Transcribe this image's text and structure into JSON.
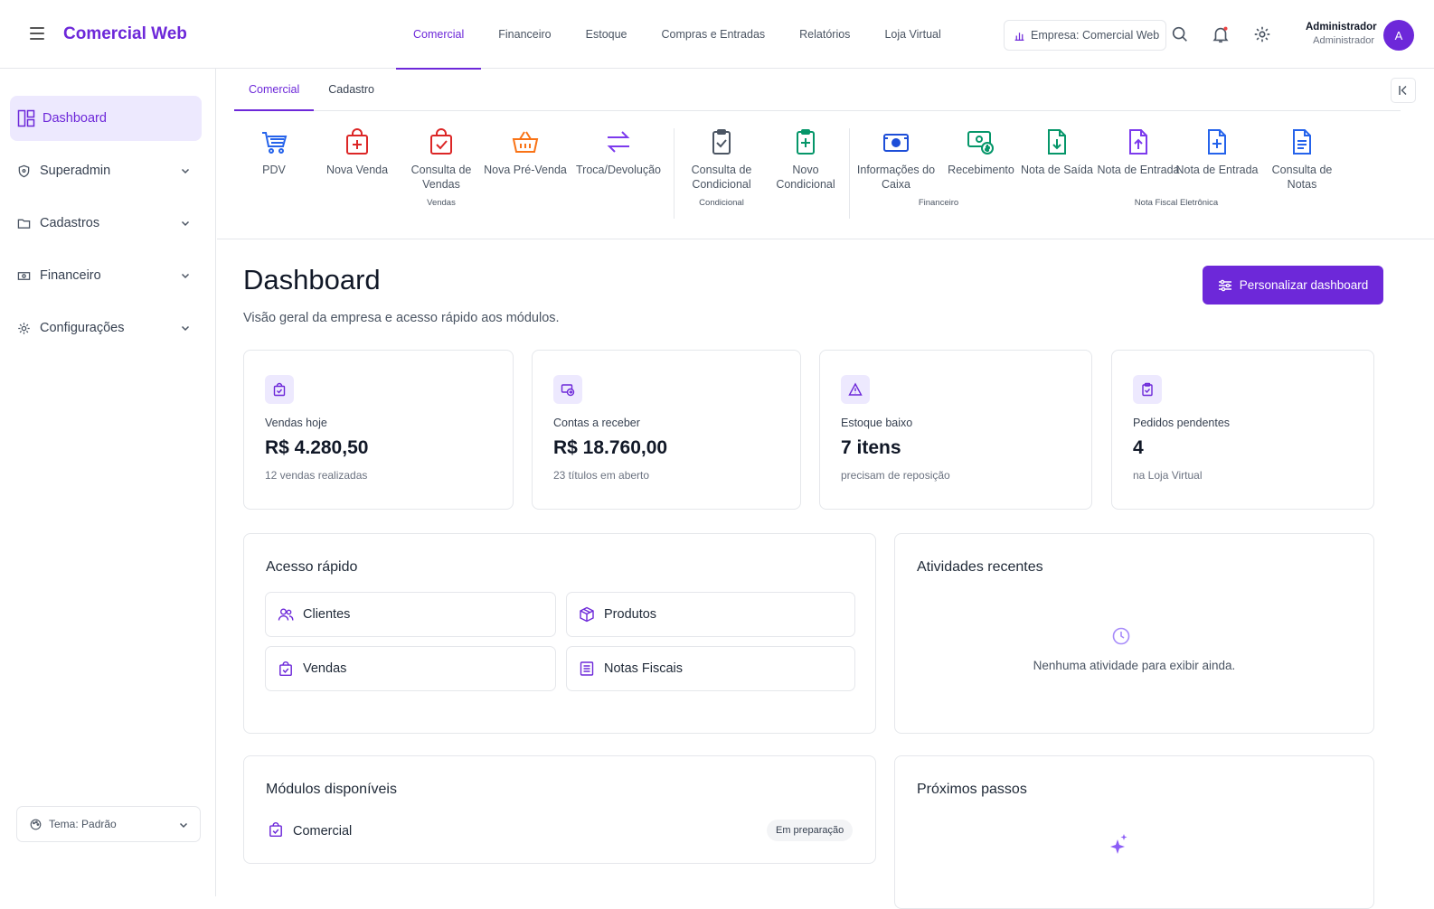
{
  "app": {
    "title": "Comercial Web"
  },
  "topnav": [
    {
      "label": "Comercial"
    },
    {
      "label": "Financeiro"
    },
    {
      "label": "Estoque"
    },
    {
      "label": "Compras e Entradas"
    },
    {
      "label": "Relatórios"
    },
    {
      "label": "Loja Virtual"
    }
  ],
  "company": {
    "label": "Empresa: Comercial Web"
  },
  "user": {
    "name": "Administrador",
    "role": "Administrador",
    "initial": "A"
  },
  "sidebar": {
    "items": [
      {
        "label": "Dashboard",
        "icon": "dashboard-icon"
      },
      {
        "label": "Superadmin",
        "icon": "shield-icon"
      },
      {
        "label": "Cadastros",
        "icon": "folder-icon"
      },
      {
        "label": "Financeiro",
        "icon": "cash-icon"
      },
      {
        "label": "Configurações",
        "icon": "gear-icon"
      }
    ],
    "theme": "Tema: Padrão"
  },
  "subtabs": [
    {
      "label": "Comercial"
    },
    {
      "label": "Cadastro"
    }
  ],
  "modules": [
    {
      "label": "PDV",
      "icon": "cart-icon",
      "color": "#2563eb"
    },
    {
      "label": "Nova Venda",
      "icon": "bag-plus-icon",
      "color": "#dc2626"
    },
    {
      "label": "Consulta de Vendas",
      "icon": "bag-check-icon",
      "color": "#dc2626"
    },
    {
      "label": "Nova Pré-Venda",
      "icon": "basket-icon",
      "color": "#f97316"
    },
    {
      "label": "Troca/Devolução",
      "icon": "exchange-icon",
      "color": "#7c3aed"
    },
    {
      "label": "Consulta de Condicional",
      "icon": "clipboard-check-icon",
      "color": "#4b5563"
    },
    {
      "label": "Novo Condicional",
      "icon": "clipboard-plus-icon",
      "color": "#059669"
    },
    {
      "label": "Informações do Caixa",
      "icon": "cash-register-icon",
      "color": "#1d4ed8"
    },
    {
      "label": "Recebimento",
      "icon": "money-icon",
      "color": "#059669"
    },
    {
      "label": "Nota de Saída",
      "icon": "doc-down-icon",
      "color": "#059669"
    },
    {
      "label": "Nota de Entrada",
      "icon": "doc-up-icon",
      "color": "#7c3aed"
    },
    {
      "label": "Nota de Entrada",
      "icon": "doc-plus-icon",
      "color": "#2563eb"
    },
    {
      "label": "Consulta de Notas",
      "icon": "doc-text-icon",
      "color": "#2563eb"
    }
  ],
  "groups": [
    {
      "label": "Vendas"
    },
    {
      "label": "Condicional"
    },
    {
      "label": "Financeiro"
    },
    {
      "label": "Nota Fiscal Eletrônica"
    }
  ],
  "page": {
    "title": "Dashboard",
    "subtitle": "Visão geral da empresa e acesso rápido aos módulos.",
    "customize": "Personalizar dashboard"
  },
  "stats": [
    {
      "label": "Vendas hoje",
      "value": "R$ 4.280,50",
      "sub": "12 vendas realizadas",
      "icon": "bag-icon"
    },
    {
      "label": "Contas a receber",
      "value": "R$ 18.760,00",
      "sub": "23 títulos em aberto",
      "icon": "receivable-icon"
    },
    {
      "label": "Estoque baixo",
      "value": "7 itens",
      "sub": "precisam de reposição",
      "icon": "warning-icon"
    },
    {
      "label": "Pedidos pendentes",
      "value": "4",
      "sub": "na Loja Virtual",
      "icon": "clipboard-icon"
    }
  ],
  "quick": {
    "title": "Acesso rápido",
    "items": [
      {
        "label": "Clientes",
        "icon": "users-icon"
      },
      {
        "label": "Produtos",
        "icon": "box-icon"
      },
      {
        "label": "Vendas",
        "icon": "bag-icon"
      },
      {
        "label": "Notas Fiscais",
        "icon": "receipt-icon"
      }
    ]
  },
  "activities": {
    "title": "Atividades recentes",
    "empty": "Nenhuma atividade para exibir ainda."
  },
  "available": {
    "title": "Módulos disponíveis",
    "item": "Comercial",
    "badge": "Em preparação"
  },
  "next": {
    "title": "Próximos passos"
  },
  "colors": {
    "accent": "#6d28d9",
    "accent_light": "#ede9fe"
  }
}
